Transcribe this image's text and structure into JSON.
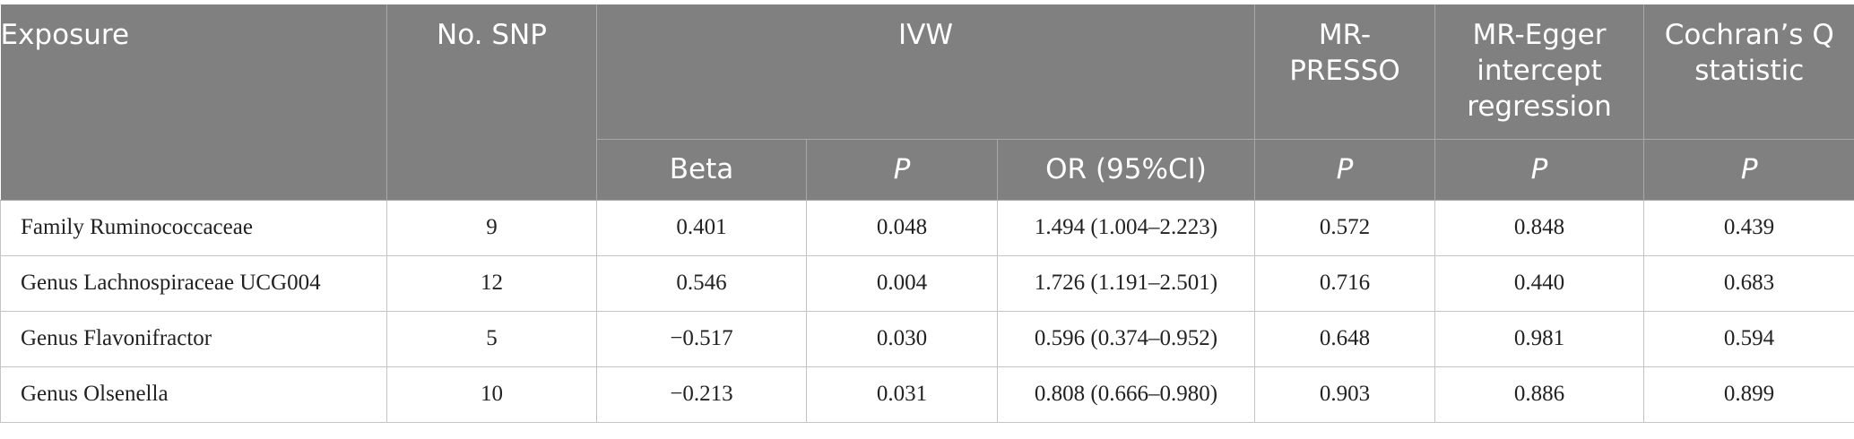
{
  "table": {
    "headers": {
      "exposure": "Exposure",
      "no_snp": "No. SNP",
      "ivw": "IVW",
      "mr_presso": "MR-\nPRESSO",
      "mr_egger": "MR-Egger intercept regression",
      "cochran": "Cochran’s Q statistic",
      "beta": "Beta",
      "p": "P",
      "or_ci": "OR (95%CI)"
    },
    "rows": [
      {
        "exposure": "Family Ruminococcaceae",
        "no_snp": "9",
        "beta": "0.401",
        "ivw_p": "0.048",
        "or_ci": "1.494 (1.004–2.223)",
        "presso_p": "0.572",
        "egger_p": "0.848",
        "cochran_p": "0.439"
      },
      {
        "exposure": "Genus Lachnospiraceae UCG004",
        "no_snp": "12",
        "beta": "0.546",
        "ivw_p": "0.004",
        "or_ci": "1.726 (1.191–2.501)",
        "presso_p": "0.716",
        "egger_p": "0.440",
        "cochran_p": "0.683"
      },
      {
        "exposure": "Genus Flavonifractor",
        "no_snp": "5",
        "beta": "−0.517",
        "ivw_p": "0.030",
        "or_ci": "0.596 (0.374–0.952)",
        "presso_p": "0.648",
        "egger_p": "0.981",
        "cochran_p": "0.594"
      },
      {
        "exposure": "Genus Olsenella",
        "no_snp": "10",
        "beta": "−0.213",
        "ivw_p": "0.031",
        "or_ci": "0.808 (0.666–0.980)",
        "presso_p": "0.903",
        "egger_p": "0.886",
        "cochran_p": "0.899"
      }
    ]
  }
}
